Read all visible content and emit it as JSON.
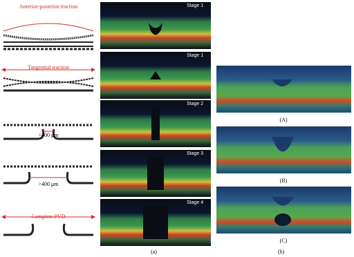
{
  "panel_a": {
    "rows": [
      {
        "diagram_label": "Anterior-posterior traction",
        "stage": "Stage 1"
      },
      {
        "diagram_label": "Tangential traction",
        "stage": "Stage 1"
      },
      {
        "diagram_label": "<400 μm",
        "stage": "Stage 2"
      },
      {
        "diagram_label": ">400 μm",
        "stage": "Stage 3"
      },
      {
        "diagram_label": "Complete PVD",
        "stage": "Stage 4"
      }
    ],
    "caption": "(a)"
  },
  "panel_b": {
    "images": [
      {
        "label": "(A)"
      },
      {
        "label": "(B)"
      },
      {
        "label": "(C)"
      }
    ],
    "caption": "(b)"
  }
}
